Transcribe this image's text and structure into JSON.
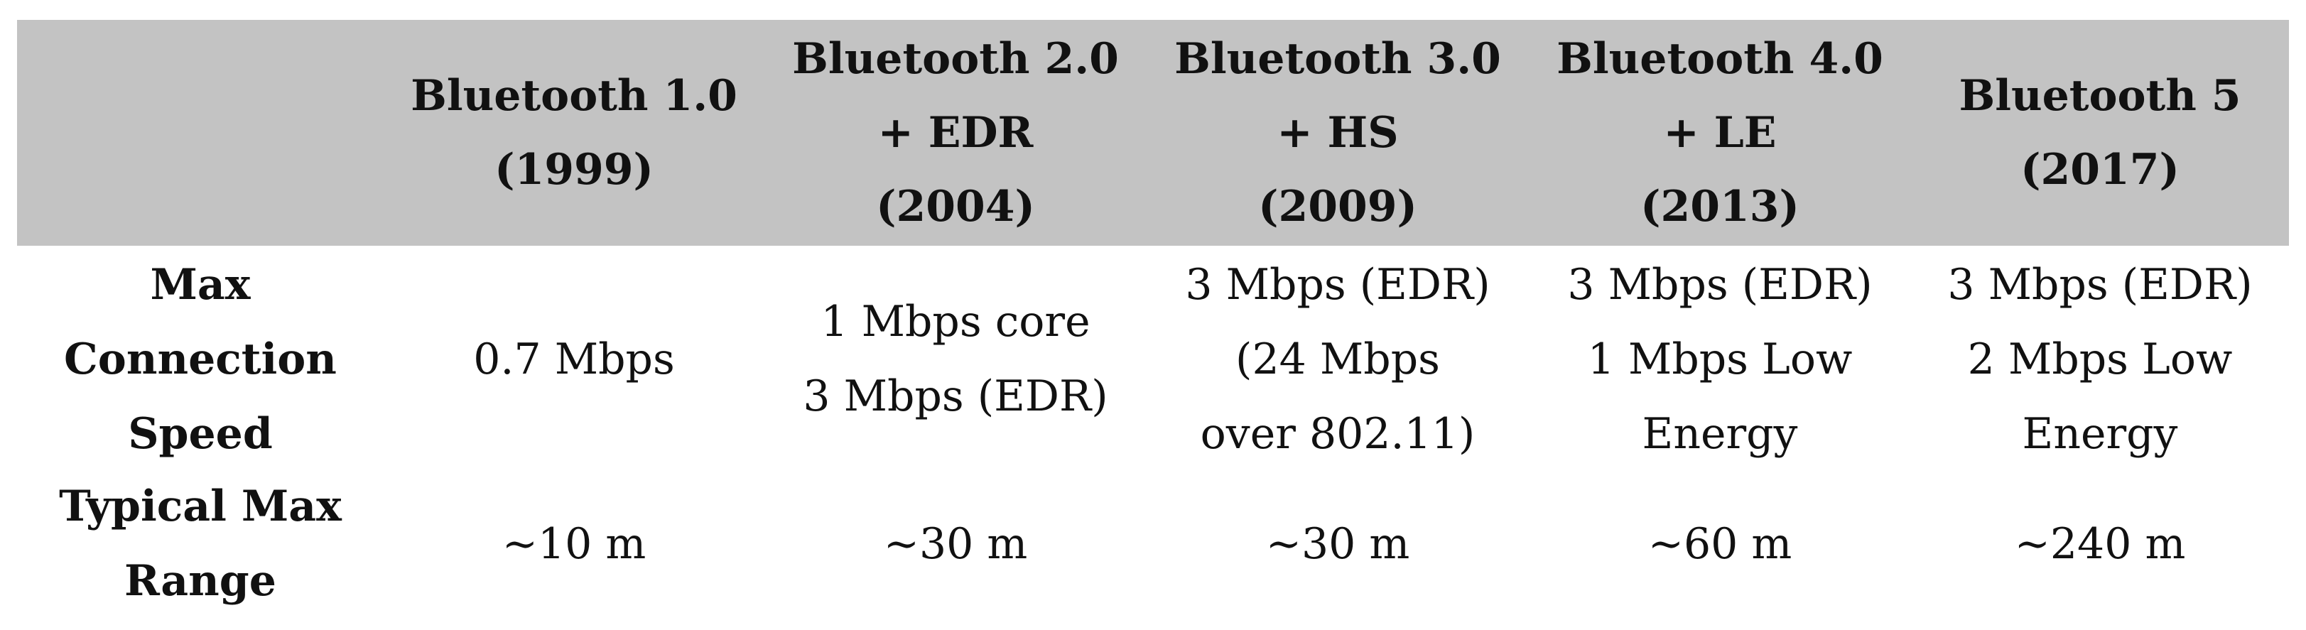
{
  "table": {
    "header": [
      "",
      "Bluetooth 1.0\n(1999)",
      "Bluetooth 2.0\n+ EDR\n(2004)",
      "Bluetooth 3.0\n+ HS\n(2009)",
      "Bluetooth 4.0\n+ LE\n(2013)",
      "Bluetooth 5\n(2017)"
    ],
    "rows": [
      {
        "label": "Max\nConnection\nSpeed",
        "cells": [
          "0.7 Mbps",
          "1 Mbps core\n3 Mbps (EDR)",
          "3 Mbps (EDR)\n(24 Mbps\nover 802.11)",
          "3 Mbps (EDR)\n1 Mbps Low\nEnergy",
          "3 Mbps (EDR)\n2 Mbps Low\nEnergy"
        ]
      },
      {
        "label": "Typical Max\nRange",
        "cells": [
          "∼10 m",
          "∼30 m",
          "∼30 m",
          "∼60 m",
          "∼240 m"
        ]
      }
    ]
  },
  "colors": {
    "header_background": "#c3c3c3",
    "text": "#111111",
    "page_background": "#ffffff"
  }
}
